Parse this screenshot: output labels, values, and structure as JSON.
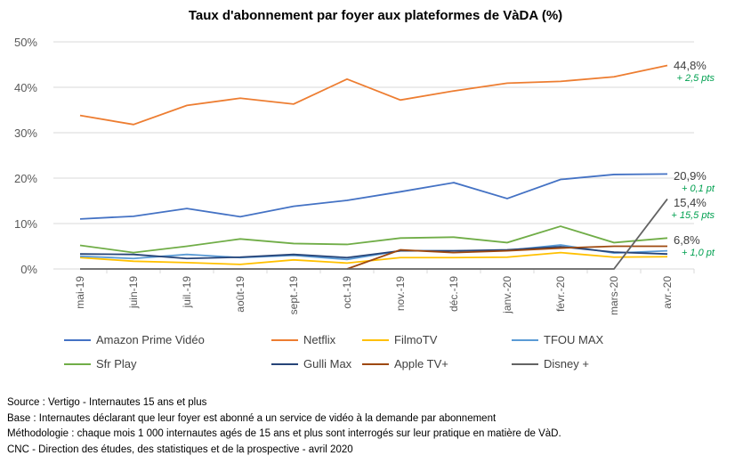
{
  "chart_data": {
    "type": "line",
    "title": "Taux d'abonnement par foyer aux plateformes de VàDA (%)",
    "xlabel": "",
    "ylabel": "",
    "ylim": [
      0,
      50
    ],
    "yticks": [
      "0%",
      "10%",
      "20%",
      "30%",
      "40%",
      "50%"
    ],
    "categories": [
      "mai-19",
      "juin-19",
      "juil.-19",
      "août-19",
      "sept.-19",
      "oct.-19",
      "nov.-19",
      "déc.-19",
      "janv.-20",
      "févr.-20",
      "mars-20",
      "avr.-20"
    ],
    "series": [
      {
        "name": "Amazon Prime Vidéo",
        "color": "#4472C4",
        "values": [
          11.0,
          11.6,
          13.3,
          11.5,
          13.8,
          15.1,
          17.0,
          19.0,
          15.5,
          19.7,
          20.8,
          20.9
        ]
      },
      {
        "name": "Netflix",
        "color": "#ED7D31",
        "values": [
          33.8,
          31.8,
          36.0,
          37.6,
          36.3,
          41.8,
          37.2,
          39.2,
          40.9,
          41.3,
          42.3,
          44.8
        ]
      },
      {
        "name": "FilmoTV",
        "color": "#FFC000",
        "values": [
          2.5,
          1.7,
          1.4,
          1.0,
          2.0,
          1.3,
          2.5,
          2.5,
          2.6,
          3.6,
          2.6,
          2.7
        ]
      },
      {
        "name": "TFOU MAX",
        "color": "#5B9BD5",
        "values": [
          2.8,
          2.3,
          3.2,
          2.5,
          3.0,
          2.1,
          4.0,
          4.0,
          4.1,
          5.3,
          3.5,
          4.0
        ]
      },
      {
        "name": "Sfr Play",
        "color": "#70AD47",
        "values": [
          5.2,
          3.6,
          5.0,
          6.6,
          5.6,
          5.4,
          6.8,
          7.0,
          5.8,
          9.4,
          5.8,
          6.8
        ]
      },
      {
        "name": "Gulli Max",
        "color": "#264478",
        "values": [
          3.3,
          3.2,
          2.3,
          2.6,
          3.2,
          2.5,
          4.0,
          4.0,
          4.2,
          4.9,
          3.7,
          3.3
        ]
      },
      {
        "name": "Apple TV+",
        "color": "#9E480E",
        "values": [
          null,
          null,
          null,
          null,
          null,
          0,
          4.2,
          3.6,
          4.0,
          4.6,
          5.0,
          5.0
        ]
      },
      {
        "name": "Disney +",
        "color": "#636363",
        "values": [
          0,
          0,
          0,
          0,
          0,
          0,
          0,
          0,
          0,
          0,
          0,
          15.4
        ]
      }
    ],
    "annotations": [
      {
        "value": "44,8%",
        "change": "+ 2,5 pts",
        "series": "Netflix"
      },
      {
        "value": "20,9%",
        "change": "+ 0,1 pt",
        "series": "Amazon Prime Vidéo"
      },
      {
        "value": "15,4%",
        "change": "+ 15,5 pts",
        "series": "Disney +"
      },
      {
        "value": "6,8%",
        "change": "+ 1,0 pt",
        "series": "Sfr Play"
      }
    ],
    "annotation_change_color": "#00A050",
    "grid": true,
    "legend": "bottom"
  },
  "notes": [
    "Source : Vertigo - Internautes 15 ans et plus",
    "Base : Internautes déclarant que leur foyer est abonné a un service de vidéo à la demande par abonnement",
    "Méthodologie : chaque mois 1 000 internautes agés de 15 ans et plus sont interrogés sur leur pratique en matière de VàD.",
    "CNC - Direction des études, des statistiques et de la prospective - avril 2020"
  ]
}
